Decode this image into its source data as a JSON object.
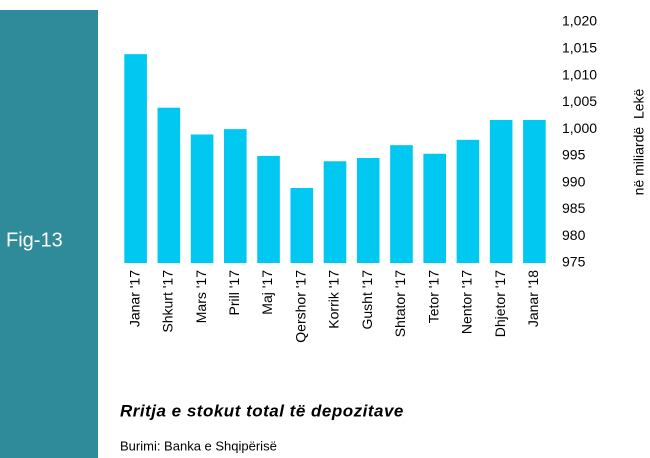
{
  "chart_data": {
    "type": "bar",
    "figure_label": "Fig-13",
    "title": "Rritja e stokut total të depozitave",
    "source": "Burimi: Banka e Shqipërisë",
    "y_label": "në miliardë  Lekë",
    "categories": [
      "Janar '17",
      "Shkurt '17",
      "Mars '17",
      "Prill '17",
      "Maj '17",
      "Qershor '17",
      "Korrik '17",
      "Gusht '17",
      "Shtator '17",
      "Tetor '17",
      "Nentor '17",
      "Dhjetor '17",
      "Janar '18"
    ],
    "values": [
      1014,
      1004,
      999,
      1000,
      995,
      989,
      994,
      994.6,
      997,
      995.4,
      998,
      1001.7,
      1001.7
    ],
    "color": "#00c8f0",
    "ylim": [
      975,
      1020
    ],
    "yticks": [
      975,
      980,
      985,
      990,
      995,
      {
        "value": 1000,
        "label": "1,000"
      },
      {
        "value": 1005,
        "label": "1,005"
      },
      {
        "value": 1010,
        "label": "1,010"
      },
      {
        "value": 1015,
        "label": "1,015"
      },
      {
        "value": 1020,
        "label": "1,020"
      }
    ],
    "grid": false
  }
}
